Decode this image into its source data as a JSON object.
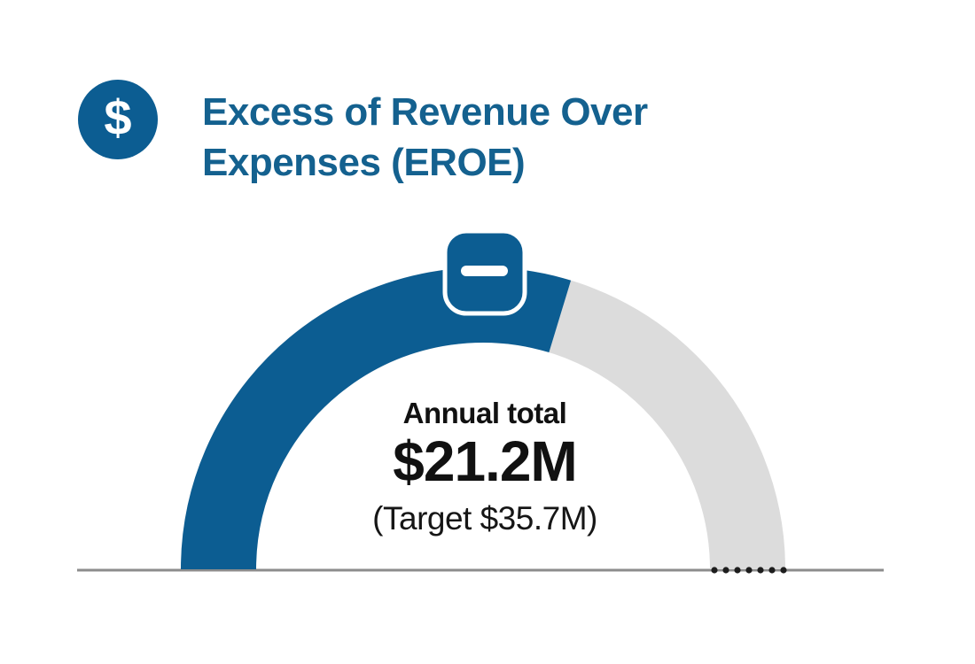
{
  "page": {
    "background": "#ffffff"
  },
  "header": {
    "icon_glyph": "$",
    "title_line1": "Excess of Revenue Over",
    "title_line2": "Expenses (EROE)"
  },
  "chart_data": {
    "type": "gauge",
    "title": "Excess of Revenue Over Expenses (EROE)",
    "center_label": "Annual total",
    "value": 21.2,
    "value_label": "$21.2M",
    "target": 35.7,
    "target_label": "(Target $35.7M)",
    "units": "$M",
    "arc_span_degrees": 180,
    "fraction_of_target": 0.594,
    "status_marker": "minus-badge",
    "target_dots": 7,
    "legend": "none",
    "colors": {
      "value_arc": "#0c5d92",
      "track_arc": "#dcdcdc",
      "baseline": "#8c8c8c",
      "dots": "#1d1d1d",
      "marker_fill": "#0c5d92",
      "marker_stroke": "#ffffff"
    }
  },
  "colors": {
    "brand_blue": "#0c5d92",
    "title_text": "#14618f",
    "icon_bg": "#0c5d92",
    "icon_glyph": "#ffffff",
    "center_text": "#111111"
  }
}
